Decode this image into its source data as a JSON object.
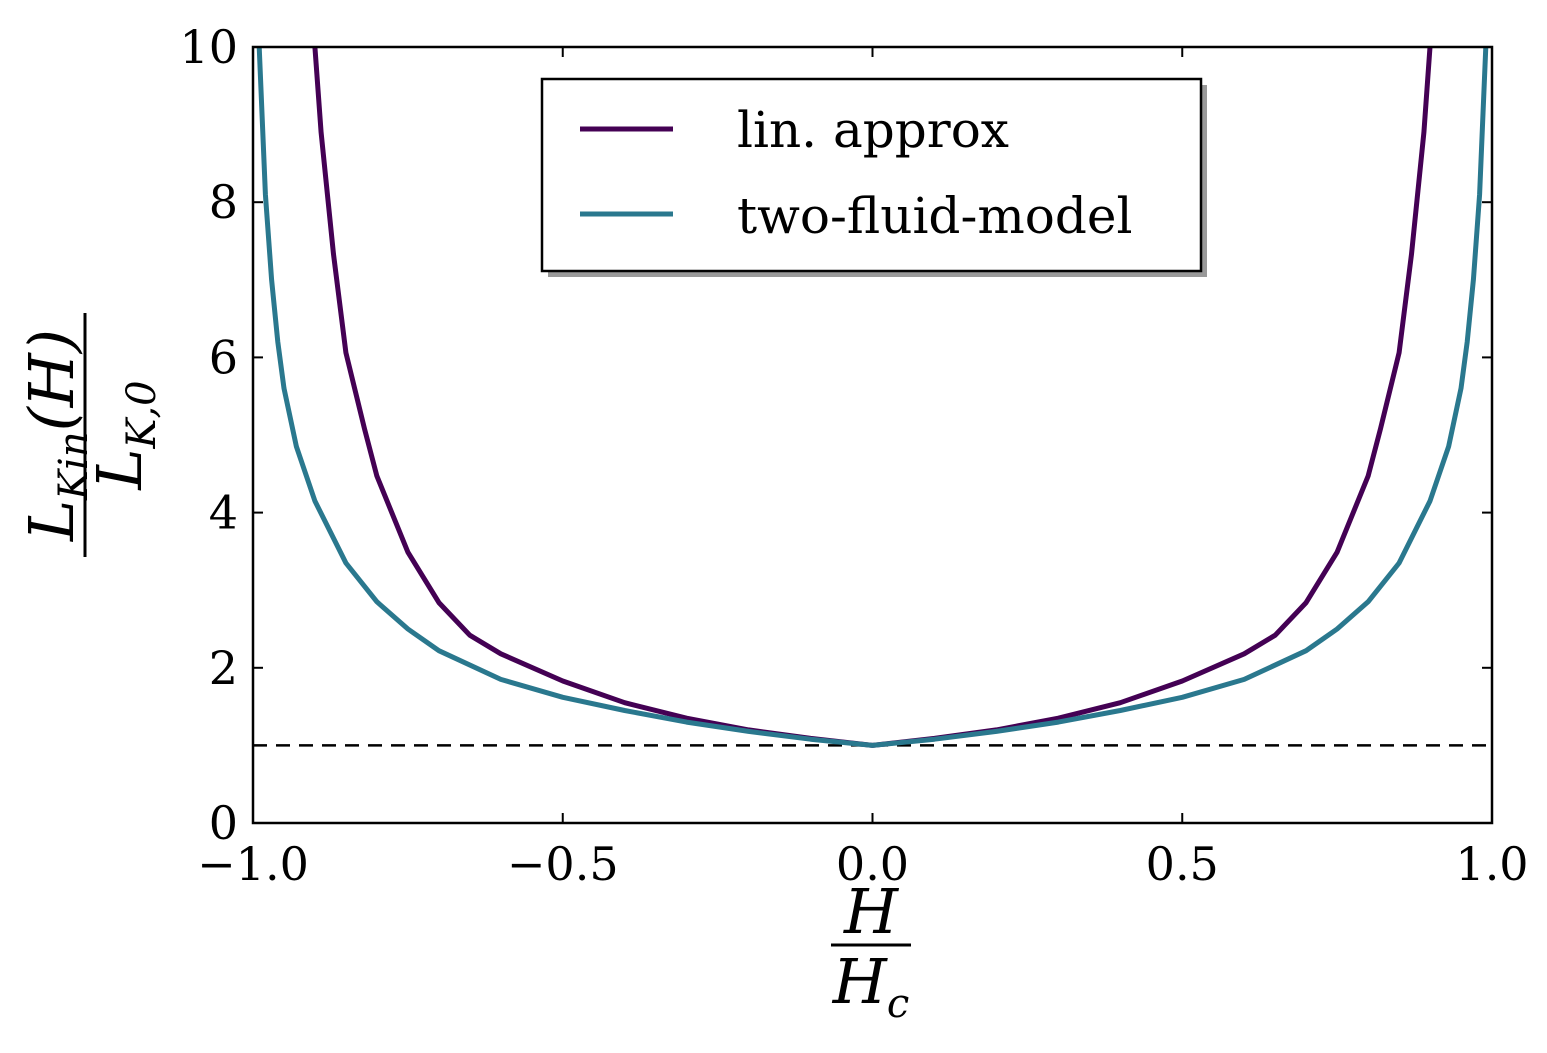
{
  "chart_data": {
    "type": "line",
    "xlim": [
      -1.0,
      1.0
    ],
    "ylim": [
      0,
      10
    ],
    "x_ticks": [
      -1.0,
      -0.5,
      0.0,
      0.5,
      1.0
    ],
    "x_tick_labels": [
      "−1.0",
      "−0.5",
      "0.0",
      "0.5",
      "1.0"
    ],
    "y_ticks": [
      0,
      2,
      4,
      6,
      8,
      10
    ],
    "y_tick_labels": [
      "0",
      "2",
      "4",
      "6",
      "8",
      "10"
    ],
    "xlabel": {
      "numerator": "H",
      "denominator": "H",
      "denominator_sub": "c"
    },
    "ylabel": {
      "numerator": "L",
      "numerator_sub": "Kin",
      "numerator_rest": "(H)",
      "denominator": "L",
      "denominator_sub": "K,0"
    },
    "grid": false,
    "legend_position": "top-center",
    "reference_line": {
      "y": 1.0,
      "style": "dashed",
      "color": "#000000"
    },
    "series": [
      {
        "name": "lin. approx",
        "color": "#440154",
        "x": [
          -0.9,
          -0.89,
          -0.87,
          -0.85,
          -0.82,
          -0.8,
          -0.75,
          -0.7,
          -0.65,
          -0.6,
          -0.5,
          -0.4,
          -0.3,
          -0.2,
          -0.1,
          0.0,
          0.1,
          0.2,
          0.3,
          0.4,
          0.5,
          0.6,
          0.65,
          0.7,
          0.75,
          0.8,
          0.82,
          0.85,
          0.87,
          0.89,
          0.9
        ],
        "values": [
          10.0,
          8.9,
          7.33,
          6.06,
          5.08,
          4.47,
          3.49,
          2.84,
          2.42,
          2.18,
          1.83,
          1.55,
          1.35,
          1.2,
          1.09,
          1.0,
          1.09,
          1.2,
          1.35,
          1.55,
          1.83,
          2.18,
          2.42,
          2.84,
          3.49,
          4.47,
          5.08,
          6.06,
          7.33,
          8.9,
          10.0
        ]
      },
      {
        "name": "two-fluid-model",
        "color": "#2a788e",
        "x": [
          -0.99,
          -0.98,
          -0.97,
          -0.96,
          -0.95,
          -0.93,
          -0.9,
          -0.85,
          -0.8,
          -0.75,
          -0.7,
          -0.6,
          -0.5,
          -0.4,
          -0.3,
          -0.2,
          -0.1,
          0.0,
          0.1,
          0.2,
          0.3,
          0.4,
          0.5,
          0.6,
          0.7,
          0.75,
          0.8,
          0.85,
          0.9,
          0.93,
          0.95,
          0.96,
          0.97,
          0.98,
          0.99
        ],
        "values": [
          10.0,
          8.1,
          7.0,
          6.2,
          5.6,
          4.85,
          4.15,
          3.35,
          2.85,
          2.5,
          2.22,
          1.85,
          1.62,
          1.45,
          1.3,
          1.18,
          1.08,
          1.0,
          1.08,
          1.18,
          1.3,
          1.45,
          1.62,
          1.85,
          2.22,
          2.5,
          2.85,
          3.35,
          4.15,
          4.85,
          5.6,
          6.2,
          7.0,
          8.1,
          10.0
        ]
      }
    ]
  }
}
